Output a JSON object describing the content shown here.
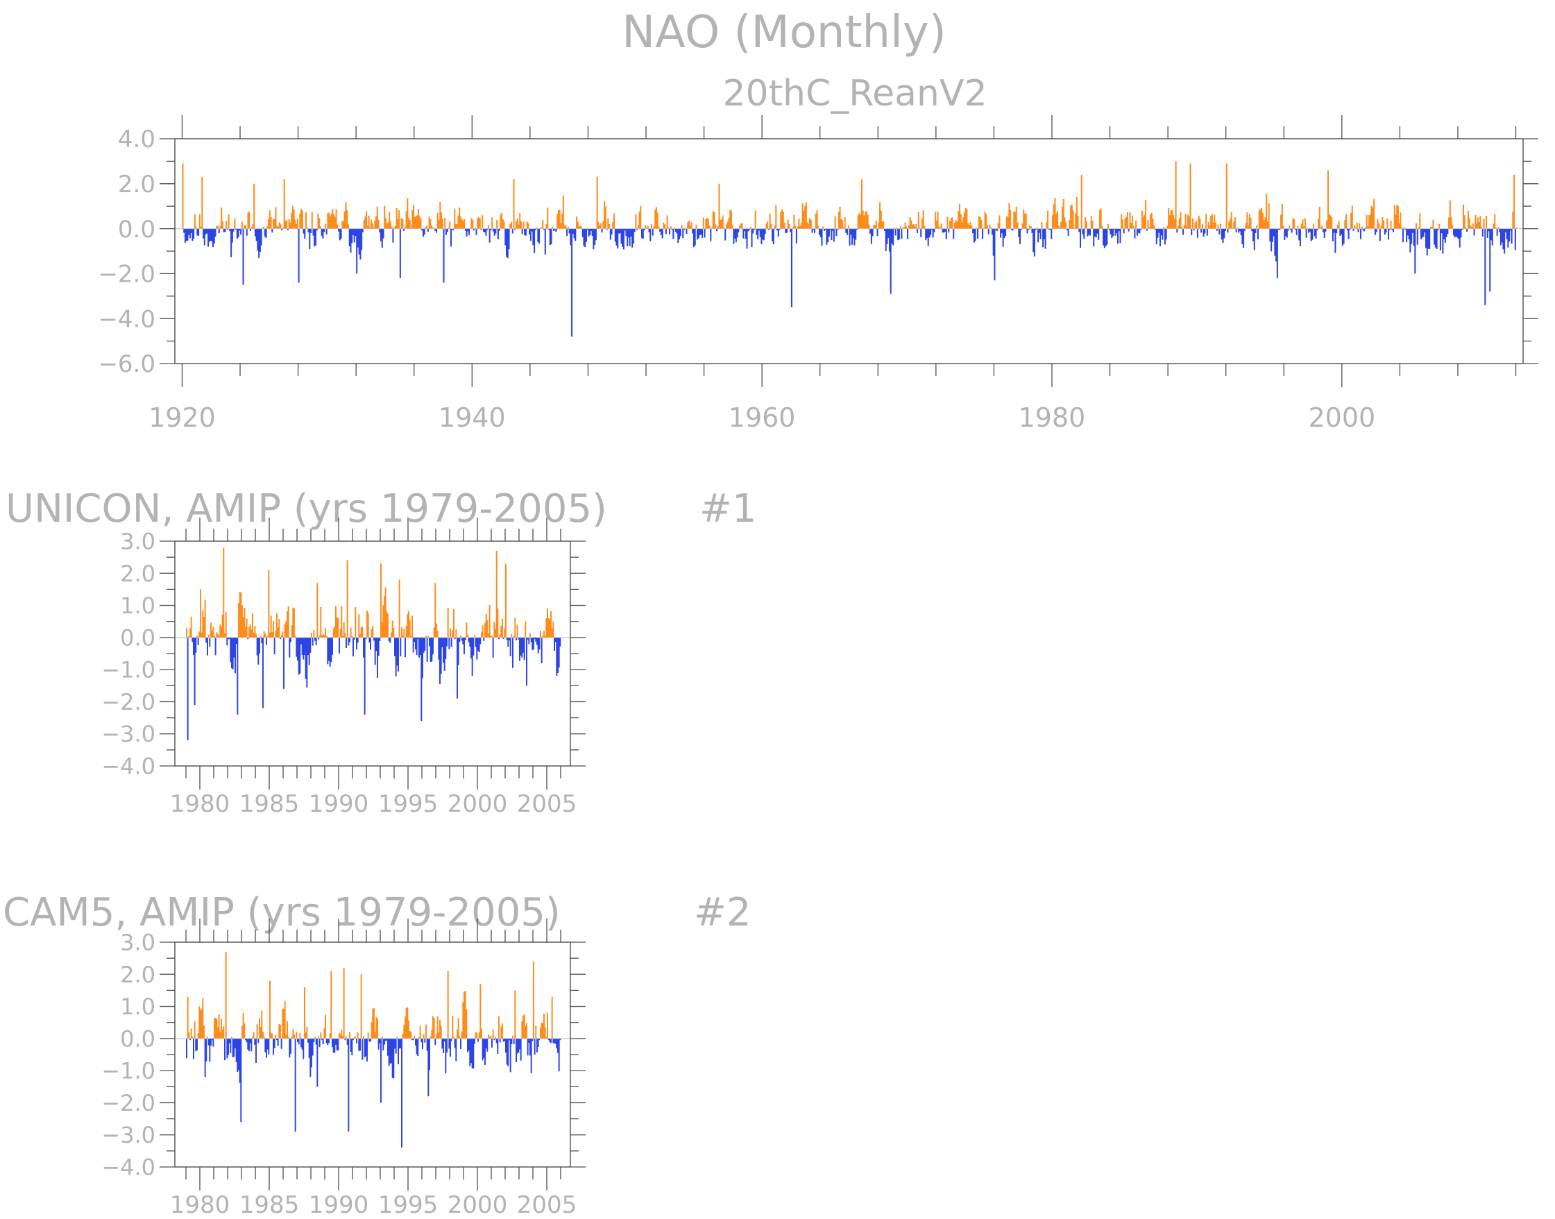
{
  "page": {
    "title": "NAO (Monthly)",
    "subtitle": "20thC_ReanV2"
  },
  "panels": [
    {
      "title": "",
      "tag": ""
    },
    {
      "title": "UNICON, AMIP (yrs 1979-2005)",
      "tag": "#1"
    },
    {
      "title": "CAM5, AMIP (yrs 1979-2005)",
      "tag": "#2"
    }
  ],
  "colors": {
    "positive": "#ff8c1a",
    "negative": "#2b44e6",
    "text": "#b3b3b3",
    "axis": "#4d4d4d"
  },
  "chart_data": [
    {
      "type": "bar",
      "subtype": "monthly-index-anomaly",
      "x_start": 1920.0,
      "x_end": 2012.0,
      "xlim": [
        1919.5,
        2012.5
      ],
      "ylim": [
        -6.0,
        4.0
      ],
      "yticks": [
        "4.0",
        "2.0",
        "0.0",
        "-2.0",
        "-4.0",
        "-6.0"
      ],
      "xticks": [
        "1920",
        "1940",
        "1960",
        "1980",
        "2000"
      ],
      "key_values": [
        {
          "x": 1920.0,
          "y": 2.9
        },
        {
          "x": 1921.3,
          "y": 2.3
        },
        {
          "x": 1924.2,
          "y": -2.5
        },
        {
          "x": 1924.9,
          "y": 2.0
        },
        {
          "x": 1927.0,
          "y": 2.2
        },
        {
          "x": 1928.0,
          "y": -2.4
        },
        {
          "x": 1932.0,
          "y": -2.0
        },
        {
          "x": 1935.0,
          "y": -2.2
        },
        {
          "x": 1938.0,
          "y": -2.4
        },
        {
          "x": 1942.8,
          "y": 2.2
        },
        {
          "x": 1946.8,
          "y": -4.8
        },
        {
          "x": 1948.6,
          "y": 2.3
        },
        {
          "x": 1957.0,
          "y": 2.0
        },
        {
          "x": 1962.0,
          "y": -3.5
        },
        {
          "x": 1966.8,
          "y": 2.2
        },
        {
          "x": 1968.8,
          "y": -2.9
        },
        {
          "x": 1976.0,
          "y": -2.3
        },
        {
          "x": 1982.0,
          "y": 2.4
        },
        {
          "x": 1988.5,
          "y": 3.0
        },
        {
          "x": 1989.5,
          "y": 2.9
        },
        {
          "x": 1992.0,
          "y": 2.9
        },
        {
          "x": 1995.5,
          "y": -2.2
        },
        {
          "x": 1999.0,
          "y": 2.6
        },
        {
          "x": 2005.0,
          "y": -2.0
        },
        {
          "x": 2009.8,
          "y": -3.4
        },
        {
          "x": 2010.2,
          "y": -2.8
        },
        {
          "x": 2011.8,
          "y": 2.4
        }
      ]
    },
    {
      "type": "bar",
      "subtype": "monthly-index-anomaly",
      "x_start": 1979.0,
      "x_end": 2005.95,
      "xlim": [
        1978.2,
        2006.7
      ],
      "ylim": [
        -4.0,
        3.0
      ],
      "yticks": [
        "3.0",
        "2.0",
        "1.0",
        "0.0",
        "-1.0",
        "-2.0",
        "-3.0",
        "-4.0"
      ],
      "xticks": [
        "1980",
        "1985",
        "1990",
        "1995",
        "2000",
        "2005"
      ],
      "key_values": [
        {
          "x": 1979.1,
          "y": -3.2
        },
        {
          "x": 1979.6,
          "y": -2.1
        },
        {
          "x": 1980.0,
          "y": 1.5
        },
        {
          "x": 1981.7,
          "y": 2.8
        },
        {
          "x": 1982.7,
          "y": -2.4
        },
        {
          "x": 1984.5,
          "y": -2.2
        },
        {
          "x": 1984.9,
          "y": 2.1
        },
        {
          "x": 1986.0,
          "y": -1.6
        },
        {
          "x": 1988.4,
          "y": 1.7
        },
        {
          "x": 1990.6,
          "y": 2.4
        },
        {
          "x": 1991.8,
          "y": -2.4
        },
        {
          "x": 1993.0,
          "y": 2.3
        },
        {
          "x": 1994.3,
          "y": 1.8
        },
        {
          "x": 1995.9,
          "y": -2.6
        },
        {
          "x": 1996.9,
          "y": 1.7
        },
        {
          "x": 1998.5,
          "y": -1.9
        },
        {
          "x": 2001.3,
          "y": 2.7
        },
        {
          "x": 2002.0,
          "y": 2.3
        },
        {
          "x": 2003.5,
          "y": -1.5
        },
        {
          "x": 2004.6,
          "y": -0.8
        }
      ]
    },
    {
      "type": "bar",
      "subtype": "monthly-index-anomaly",
      "x_start": 1979.0,
      "x_end": 2005.95,
      "xlim": [
        1978.2,
        2006.7
      ],
      "ylim": [
        -4.0,
        3.0
      ],
      "yticks": [
        "3.0",
        "2.0",
        "1.0",
        "0.0",
        "-1.0",
        "-2.0",
        "-3.0",
        "-4.0"
      ],
      "xticks": [
        "1980",
        "1985",
        "1990",
        "1995",
        "2000",
        "2005"
      ],
      "key_values": [
        {
          "x": 1979.1,
          "y": 1.3
        },
        {
          "x": 1980.3,
          "y": -1.2
        },
        {
          "x": 1981.8,
          "y": 2.7
        },
        {
          "x": 1982.9,
          "y": -2.6
        },
        {
          "x": 1985.0,
          "y": 1.8
        },
        {
          "x": 1986.8,
          "y": -2.9
        },
        {
          "x": 1987.5,
          "y": 1.6
        },
        {
          "x": 1988.4,
          "y": -1.5
        },
        {
          "x": 1989.4,
          "y": 2.1
        },
        {
          "x": 1990.3,
          "y": 2.2
        },
        {
          "x": 1990.7,
          "y": -2.9
        },
        {
          "x": 1991.6,
          "y": 2.0
        },
        {
          "x": 1993.0,
          "y": -2.0
        },
        {
          "x": 1994.5,
          "y": -3.4
        },
        {
          "x": 1996.4,
          "y": -1.8
        },
        {
          "x": 1997.8,
          "y": 2.1
        },
        {
          "x": 2000.2,
          "y": 1.7
        },
        {
          "x": 2002.7,
          "y": 1.5
        },
        {
          "x": 2004.0,
          "y": 2.4
        },
        {
          "x": 2005.3,
          "y": 1.3
        }
      ]
    }
  ]
}
